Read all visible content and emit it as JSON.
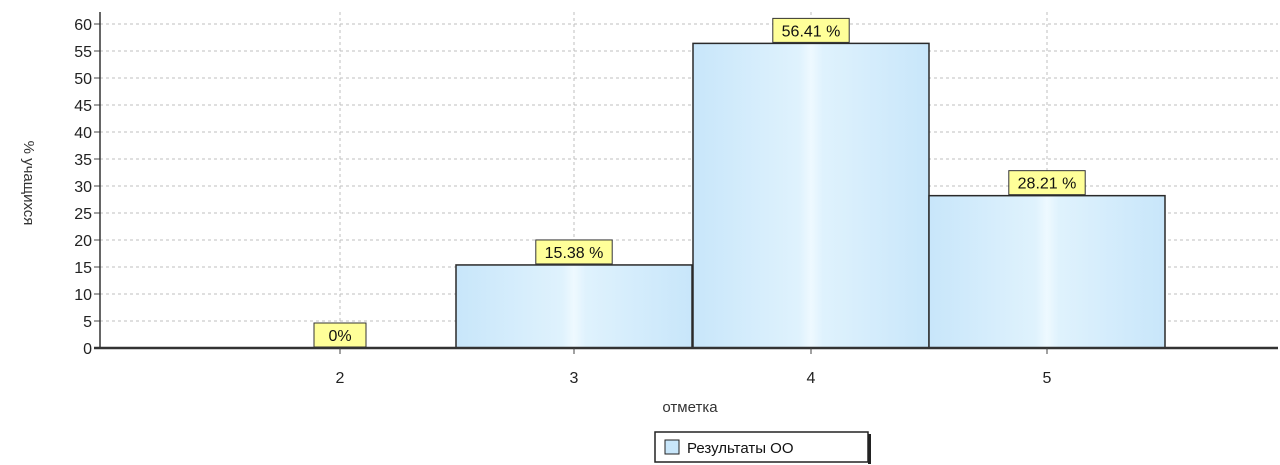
{
  "chart_data": {
    "type": "bar",
    "categories": [
      "2",
      "3",
      "4",
      "5"
    ],
    "series": [
      {
        "name": "Результаты ОО",
        "values": [
          0,
          15.38,
          56.41,
          28.21
        ]
      }
    ],
    "data_labels": [
      "0%",
      "15.38 %",
      "56.41 %",
      "28.21 %"
    ],
    "xlabel": "отметка",
    "ylabel": "% учащихся",
    "ylim": [
      0,
      60
    ],
    "yticks": [
      0,
      5,
      10,
      15,
      20,
      25,
      30,
      35,
      40,
      45,
      50,
      55,
      60
    ],
    "grid": true,
    "legend_position": "bottom-center",
    "colors": {
      "bar_fill": "#c8e6fa",
      "bar_highlight": "#eaf8ff",
      "bar_stroke": "#2a2a2a",
      "label_bg": "#ffff99",
      "grid": "#bfbfbf"
    }
  }
}
